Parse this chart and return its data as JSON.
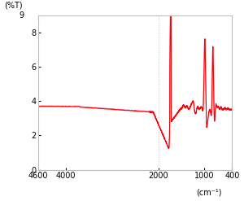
{
  "title": "",
  "xlabel": "(cm⁻¹)",
  "ylabel": "(%T)",
  "xlim": [
    4600,
    400
  ],
  "ylim": [
    0,
    9
  ],
  "yticks": [
    0,
    2,
    4,
    6,
    8
  ],
  "ytick_extra": 9,
  "xticks": [
    4600,
    4000,
    2000,
    1000,
    400
  ],
  "line_color": "#ff0000",
  "line_color2": "#dd44cc",
  "bg_color": "#ffffff",
  "plot_bg": "#ffffff",
  "dotted_line_x": 2000,
  "dotted_line_color": "#bbbbbb"
}
